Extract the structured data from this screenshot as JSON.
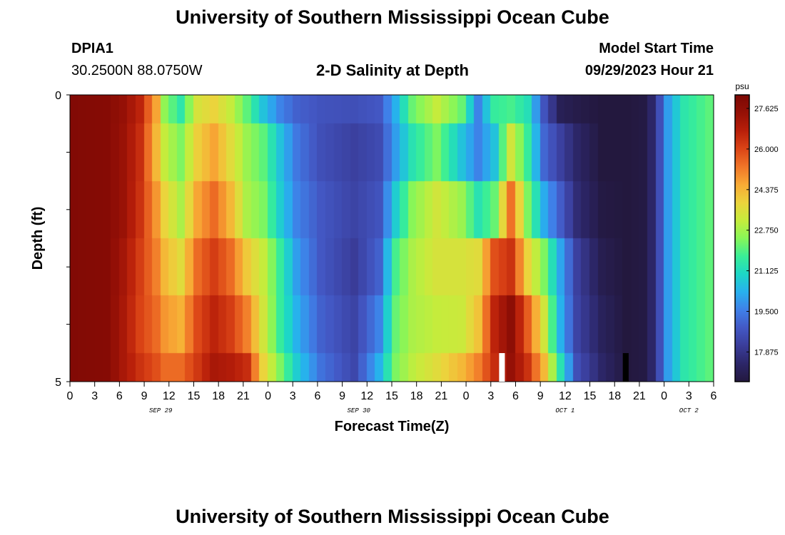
{
  "header": {
    "title": "University of Southern Mississippi Ocean Cube",
    "station": "DPIA1",
    "location": "30.2500N  88.0750W",
    "subtitle": "2-D Salinity at Depth",
    "model_start_label": "Model Start Time",
    "model_start_value": "09/29/2023 Hour 21"
  },
  "footer": {
    "title": "University of Southern Mississippi Ocean Cube"
  },
  "colorbar": {
    "unit": "psu",
    "ticks": [
      "27.625",
      "26.000",
      "24.375",
      "22.750",
      "21.125",
      "19.500",
      "17.875"
    ],
    "colors": [
      "#23183e",
      "#2c2668",
      "#3a3d9a",
      "#4358c5",
      "#3f80e8",
      "#28b0ee",
      "#1dd7c6",
      "#3aee97",
      "#88f658",
      "#c6ec3c",
      "#ecd33c",
      "#f8aa35",
      "#f07528",
      "#db4416",
      "#b81f0a",
      "#951006",
      "#7b0804"
    ]
  },
  "chart_data": {
    "type": "heatmap",
    "xlabel": "Forecast Time(Z)",
    "ylabel": "Depth (ft)",
    "x_tick_labels": [
      "0",
      "3",
      "6",
      "9",
      "12",
      "15",
      "18",
      "21",
      "0",
      "3",
      "6",
      "9",
      "12",
      "15",
      "18",
      "21",
      "0",
      "3",
      "6",
      "9",
      "12",
      "15",
      "18",
      "21",
      "0",
      "3",
      "6"
    ],
    "date_labels": [
      {
        "label": "SEP 29",
        "hour_index": 11
      },
      {
        "label": "SEP 30",
        "hour_index": 35
      },
      {
        "label": "OCT 1",
        "hour_index": 60
      },
      {
        "label": "OCT 2",
        "hour_index": 75
      }
    ],
    "y_tick_labels": [
      "0",
      "5"
    ],
    "ylim": [
      0,
      5
    ],
    "hours": 78,
    "value_range": [
      16.9,
      28.3
    ],
    "gaps": [
      {
        "hour": 52,
        "depth_band": 5,
        "color": "#ffffff"
      },
      {
        "hour": 67,
        "depth_band": 5,
        "color": "#000000"
      }
    ],
    "knots": [
      {
        "h": 0,
        "v": [
          28.1,
          28.1,
          28.1,
          28.1,
          28.1,
          28.1
        ]
      },
      {
        "h": 4,
        "v": [
          28.0,
          28.0,
          28.0,
          28.0,
          28.0,
          28.0
        ]
      },
      {
        "h": 6,
        "v": [
          27.6,
          27.5,
          27.5,
          27.3,
          27.2,
          27.2
        ]
      },
      {
        "h": 8,
        "v": [
          26.8,
          26.6,
          26.5,
          26.3,
          26.2,
          26.5
        ]
      },
      {
        "h": 10,
        "v": [
          24.8,
          24.5,
          25.0,
          25.3,
          25.6,
          26.0
        ]
      },
      {
        "h": 11,
        "v": [
          22.7,
          23.3,
          24.0,
          24.5,
          25.0,
          25.6
        ]
      },
      {
        "h": 13,
        "v": [
          21.6,
          22.5,
          23.0,
          23.8,
          24.6,
          25.6
        ]
      },
      {
        "h": 15,
        "v": [
          23.6,
          24.1,
          24.8,
          25.6,
          26.1,
          26.4
        ]
      },
      {
        "h": 17,
        "v": [
          24.0,
          24.8,
          25.6,
          26.3,
          26.8,
          27.2
        ]
      },
      {
        "h": 19,
        "v": [
          23.3,
          23.8,
          24.5,
          25.6,
          26.3,
          27.0
        ]
      },
      {
        "h": 21,
        "v": [
          22.2,
          22.8,
          23.0,
          24.2,
          25.3,
          26.6
        ]
      },
      {
        "h": 23,
        "v": [
          20.8,
          22.2,
          22.5,
          23.3,
          23.5,
          24.0
        ]
      },
      {
        "h": 25,
        "v": [
          19.8,
          20.8,
          21.0,
          21.8,
          21.8,
          22.5
        ]
      },
      {
        "h": 27,
        "v": [
          19.2,
          19.6,
          19.8,
          20.2,
          20.5,
          21.0
        ]
      },
      {
        "h": 30,
        "v": [
          18.9,
          18.8,
          19.0,
          19.0,
          19.2,
          19.5
        ]
      },
      {
        "h": 34,
        "v": [
          18.8,
          18.4,
          18.5,
          18.3,
          18.5,
          18.6
        ]
      },
      {
        "h": 37,
        "v": [
          19.0,
          18.7,
          18.9,
          19.2,
          19.8,
          20.5
        ]
      },
      {
        "h": 39,
        "v": [
          20.5,
          20.2,
          21.0,
          22.0,
          22.3,
          22.5
        ]
      },
      {
        "h": 41,
        "v": [
          22.3,
          21.5,
          22.6,
          23.0,
          23.0,
          23.2
        ]
      },
      {
        "h": 44,
        "v": [
          23.3,
          22.5,
          23.5,
          23.6,
          23.3,
          23.8
        ]
      },
      {
        "h": 47,
        "v": [
          22.3,
          20.8,
          22.8,
          23.6,
          23.4,
          24.5
        ]
      },
      {
        "h": 49,
        "v": [
          19.8,
          19.8,
          21.5,
          23.8,
          24.3,
          25.3
        ]
      },
      {
        "h": 51,
        "v": [
          21.8,
          20.8,
          22.3,
          26.0,
          26.8,
          26.6
        ]
      },
      {
        "h": 53,
        "v": [
          22.0,
          23.5,
          25.5,
          26.5,
          27.8,
          27.6
        ]
      },
      {
        "h": 55,
        "v": [
          21.4,
          21.8,
          22.5,
          24.0,
          25.8,
          26.5
        ]
      },
      {
        "h": 57,
        "v": [
          18.9,
          19.3,
          20.4,
          22.5,
          23.5,
          24.5
        ]
      },
      {
        "h": 59,
        "v": [
          17.3,
          18.4,
          19.1,
          20.3,
          20.5,
          21.5
        ]
      },
      {
        "h": 61,
        "v": [
          17.1,
          17.6,
          17.8,
          18.4,
          18.5,
          18.8
        ]
      },
      {
        "h": 64,
        "v": [
          16.9,
          16.9,
          17.0,
          17.2,
          17.4,
          17.6
        ]
      },
      {
        "h": 67,
        "v": [
          16.9,
          16.9,
          16.9,
          16.9,
          16.9,
          16.9
        ]
      },
      {
        "h": 69,
        "v": [
          17.0,
          17.0,
          17.0,
          17.0,
          17.0,
          17.0
        ]
      },
      {
        "h": 70,
        "v": [
          17.6,
          17.6,
          17.6,
          17.6,
          17.6,
          17.6
        ]
      },
      {
        "h": 71,
        "v": [
          18.8,
          18.8,
          18.8,
          18.8,
          18.8,
          18.8
        ]
      },
      {
        "h": 72,
        "v": [
          20.2,
          20.2,
          20.2,
          20.2,
          20.2,
          20.2
        ]
      },
      {
        "h": 74,
        "v": [
          21.6,
          21.6,
          21.6,
          21.6,
          21.6,
          21.6
        ]
      },
      {
        "h": 77,
        "v": [
          22.2,
          22.2,
          22.2,
          22.2,
          22.2,
          22.2
        ]
      }
    ]
  }
}
